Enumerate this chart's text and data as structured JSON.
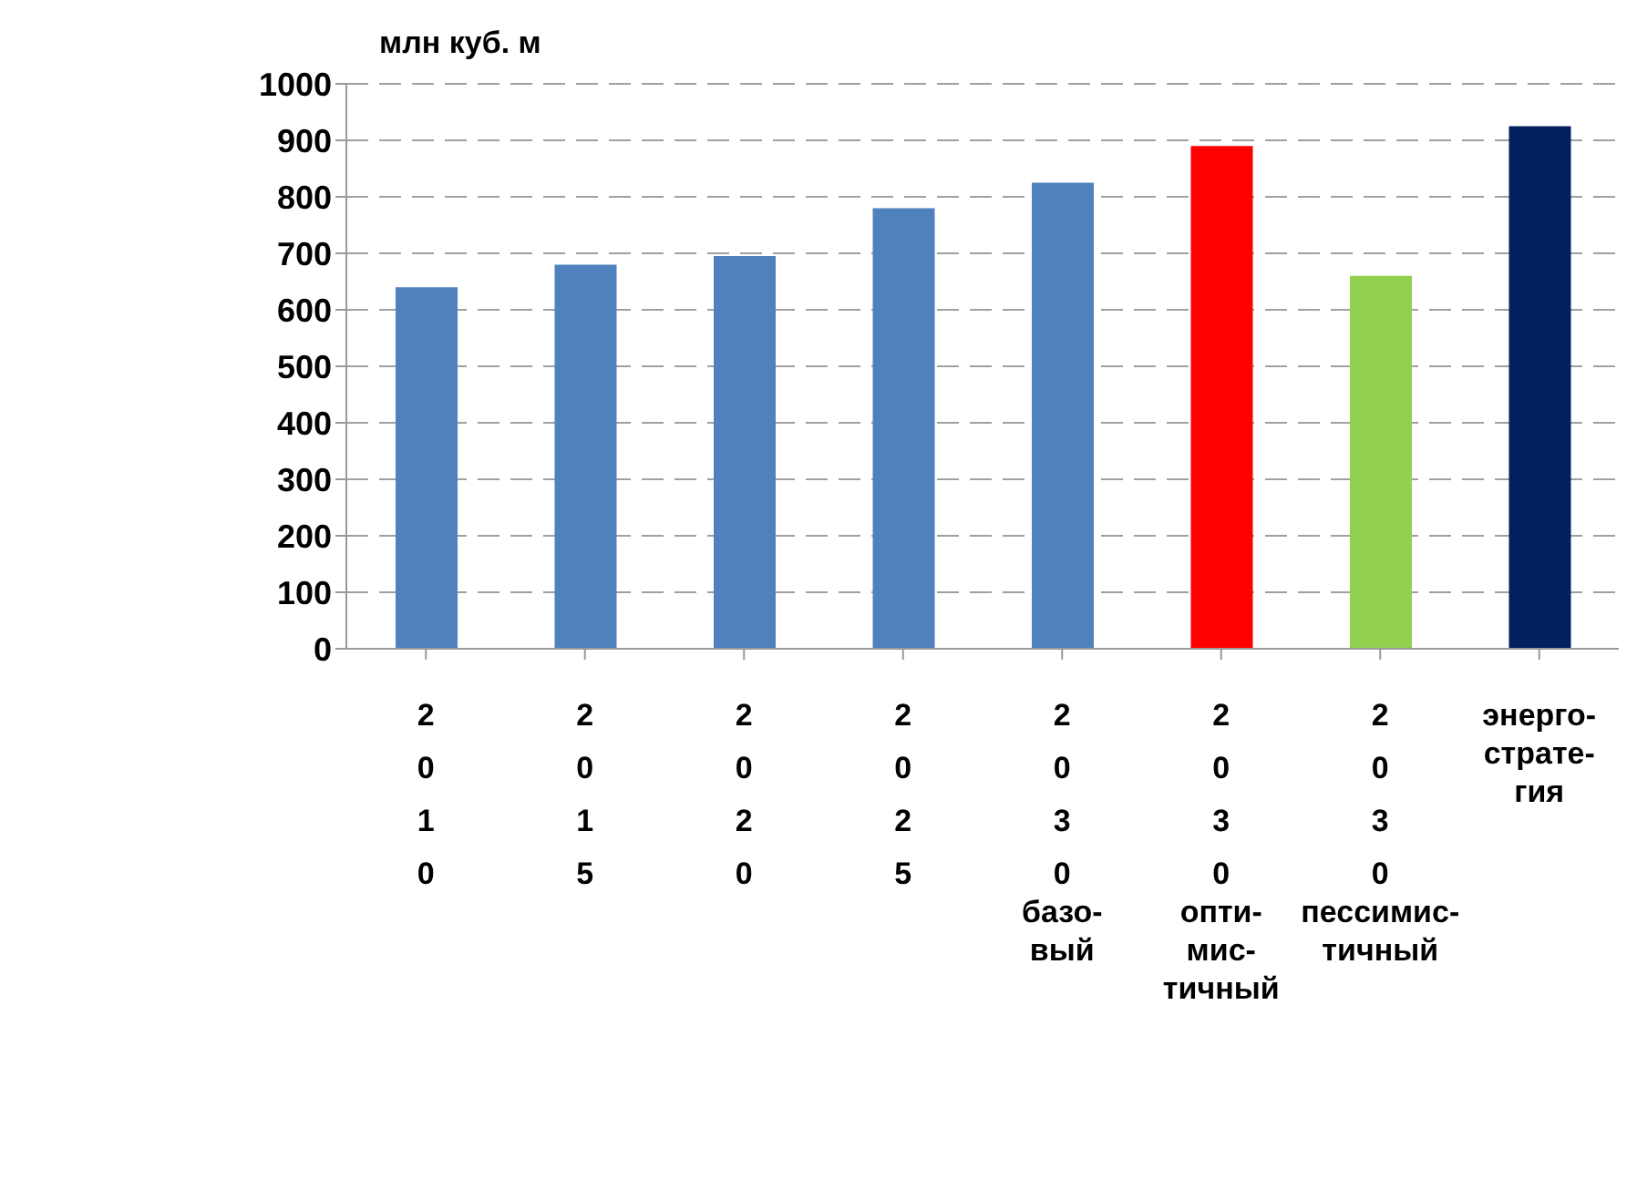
{
  "chart_data": {
    "type": "bar",
    "ylabel": "млн куб. м",
    "categories": [
      "2\n0\n1\n0",
      "2\n0\n1\n5",
      "2\n0\n2\n0",
      "2\n0\n2\n5",
      "2\n0\n3\n0\nбазо-\nвый",
      "2\n0\n3\n0\nопти-\nмис-\nтичный",
      "2\n0\n3\n0\nпессимис-\nтичный",
      "энерго-\nстрате-\nгия"
    ],
    "values": [
      640,
      680,
      695,
      780,
      825,
      890,
      660,
      925
    ],
    "colors": [
      "#4f81bd",
      "#4f81bd",
      "#4f81bd",
      "#4f81bd",
      "#4f81bd",
      "#ff0000",
      "#92d050",
      "#02205e"
    ],
    "ylim": [
      0,
      1000
    ],
    "yticks": [
      0,
      100,
      200,
      300,
      400,
      500,
      600,
      700,
      800,
      900,
      1000
    ],
    "grid": "y"
  }
}
